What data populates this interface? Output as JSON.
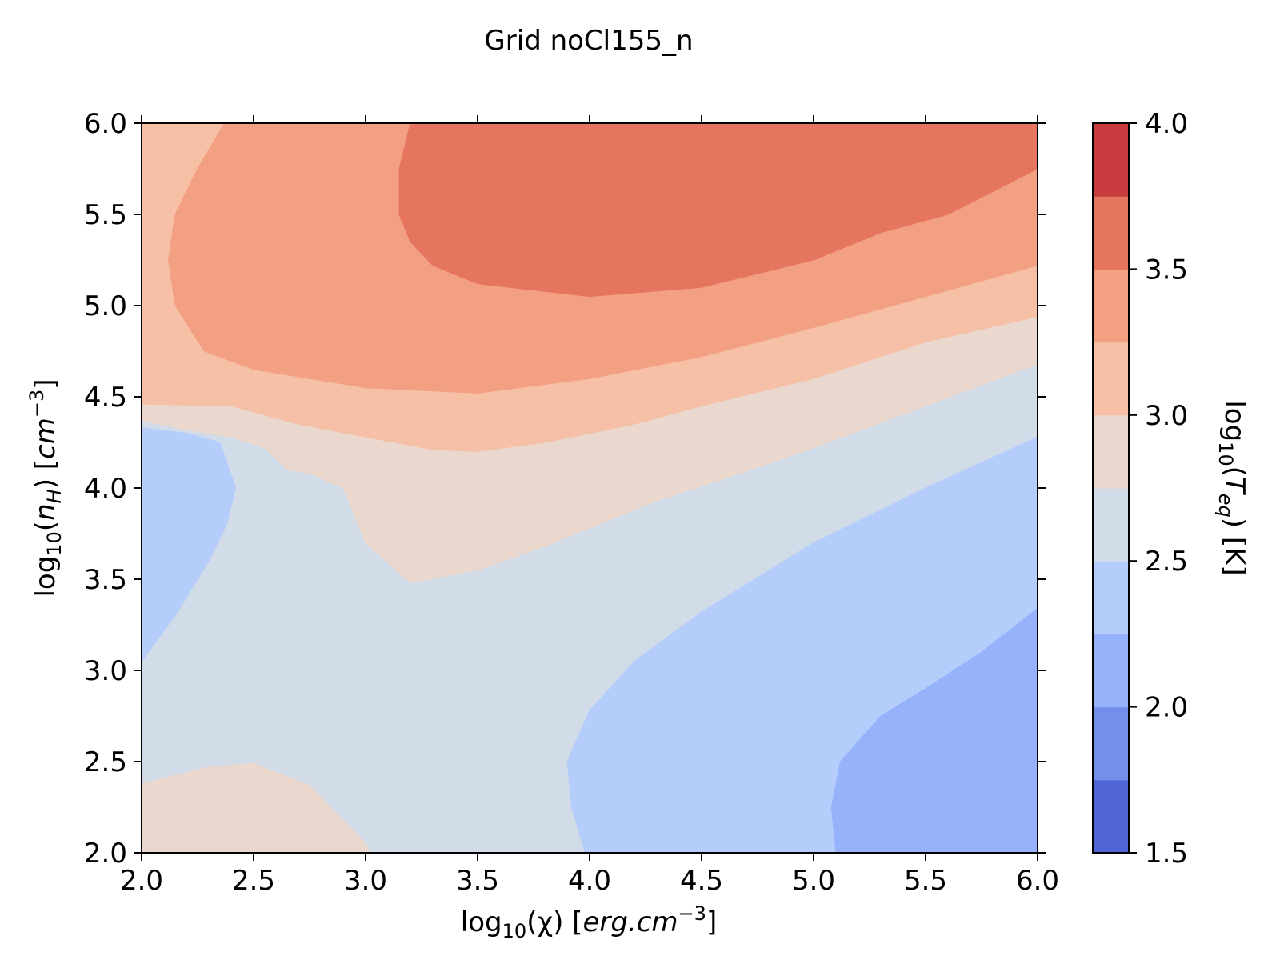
{
  "chart_data": {
    "type": "contourf",
    "title": "Grid noCl155_n",
    "xlabel": {
      "base": "log",
      "sub": "10",
      "mid": "(χ) [",
      "ital": "erg.cm",
      "sup": "−3",
      "end": "]"
    },
    "ylabel": {
      "base": "log",
      "sub": "10",
      "open": "(",
      "ital1": "n",
      "isub": "H",
      "mid": ") [",
      "ital2": "cm",
      "sup": "−3",
      "end": "]"
    },
    "colorbar_label": {
      "base": "log",
      "sub": "10",
      "open": "(",
      "ital": "T",
      "isub": "eq",
      "end": ") [K]"
    },
    "xlim": [
      2.0,
      6.0
    ],
    "ylim": [
      2.0,
      6.0
    ],
    "x_ticks": [
      "2.0",
      "2.5",
      "3.0",
      "3.5",
      "4.0",
      "4.5",
      "5.0",
      "5.5",
      "6.0"
    ],
    "y_ticks": [
      "2.0",
      "2.5",
      "3.0",
      "3.5",
      "4.0",
      "4.5",
      "5.0",
      "5.5",
      "6.0"
    ],
    "colorbar": {
      "range": [
        1.5,
        4.0
      ],
      "ticks": [
        "1.5",
        "2.0",
        "2.5",
        "3.0",
        "3.5",
        "4.0"
      ],
      "levels": [
        {
          "from": 1.5,
          "to": 1.75,
          "color": "#5166d6"
        },
        {
          "from": 1.75,
          "to": 2.0,
          "color": "#7290ea"
        },
        {
          "from": 2.0,
          "to": 2.25,
          "color": "#95b2fb"
        },
        {
          "from": 2.25,
          "to": 2.5,
          "color": "#b5cdfa"
        },
        {
          "from": 2.5,
          "to": 2.75,
          "color": "#d2dbe8"
        },
        {
          "from": 2.75,
          "to": 3.0,
          "color": "#ead8cf"
        },
        {
          "from": 3.0,
          "to": 3.25,
          "color": "#f5c0a6"
        },
        {
          "from": 3.25,
          "to": 3.5,
          "color": "#f39f82"
        },
        {
          "from": 3.5,
          "to": 3.75,
          "color": "#e6755f"
        },
        {
          "from": 3.75,
          "to": 4.0,
          "color": "#c83b3e"
        }
      ]
    },
    "regions": [
      {
        "level": 2.625,
        "points": [
          [
            2.0,
            2.0
          ],
          [
            6.0,
            2.0
          ],
          [
            6.0,
            6.0
          ],
          [
            2.0,
            6.0
          ]
        ]
      },
      {
        "level": 2.875,
        "points": [
          [
            2.0,
            4.37
          ],
          [
            2.2,
            4.32
          ],
          [
            2.4,
            4.28
          ],
          [
            2.55,
            4.22
          ],
          [
            2.65,
            4.1
          ],
          [
            2.75,
            4.08
          ],
          [
            2.9,
            4.0
          ],
          [
            3.0,
            3.7
          ],
          [
            3.2,
            3.48
          ],
          [
            3.5,
            3.55
          ],
          [
            3.8,
            3.68
          ],
          [
            4.3,
            3.93
          ],
          [
            4.6,
            4.05
          ],
          [
            5.0,
            4.22
          ],
          [
            5.5,
            4.45
          ],
          [
            6.0,
            4.68
          ],
          [
            6.0,
            6.0
          ],
          [
            2.0,
            6.0
          ]
        ]
      },
      {
        "level": 3.125,
        "points": [
          [
            2.0,
            4.46
          ],
          [
            2.4,
            4.45
          ],
          [
            2.7,
            4.35
          ],
          [
            3.0,
            4.28
          ],
          [
            3.3,
            4.21
          ],
          [
            3.5,
            4.2
          ],
          [
            3.8,
            4.25
          ],
          [
            4.2,
            4.35
          ],
          [
            4.5,
            4.45
          ],
          [
            5.0,
            4.6
          ],
          [
            5.5,
            4.8
          ],
          [
            6.0,
            4.94
          ],
          [
            6.0,
            6.0
          ],
          [
            2.0,
            6.0
          ]
        ]
      },
      {
        "level": 3.375,
        "points": [
          [
            2.37,
            6.0
          ],
          [
            2.25,
            5.75
          ],
          [
            2.15,
            5.5
          ],
          [
            2.12,
            5.25
          ],
          [
            2.15,
            5.0
          ],
          [
            2.28,
            4.75
          ],
          [
            2.5,
            4.65
          ],
          [
            3.0,
            4.55
          ],
          [
            3.5,
            4.52
          ],
          [
            4.0,
            4.6
          ],
          [
            4.5,
            4.72
          ],
          [
            5.0,
            4.88
          ],
          [
            5.5,
            5.05
          ],
          [
            6.0,
            5.22
          ],
          [
            6.0,
            6.0
          ]
        ]
      },
      {
        "level": 3.625,
        "points": [
          [
            3.2,
            6.0
          ],
          [
            3.15,
            5.75
          ],
          [
            3.15,
            5.5
          ],
          [
            3.2,
            5.35
          ],
          [
            3.3,
            5.22
          ],
          [
            3.5,
            5.12
          ],
          [
            4.0,
            5.05
          ],
          [
            4.5,
            5.1
          ],
          [
            5.0,
            5.25
          ],
          [
            5.3,
            5.4
          ],
          [
            5.6,
            5.5
          ],
          [
            6.0,
            5.75
          ],
          [
            6.0,
            6.0
          ]
        ]
      },
      {
        "level": 2.375,
        "points": [
          [
            2.0,
            3.05
          ],
          [
            2.15,
            3.3
          ],
          [
            2.3,
            3.6
          ],
          [
            2.38,
            3.8
          ],
          [
            2.42,
            4.0
          ],
          [
            2.35,
            4.25
          ],
          [
            2.2,
            4.3
          ],
          [
            2.0,
            4.33
          ]
        ]
      },
      {
        "level": 2.375,
        "points": [
          [
            3.98,
            2.0
          ],
          [
            3.92,
            2.25
          ],
          [
            3.9,
            2.5
          ],
          [
            4.0,
            2.78
          ],
          [
            4.2,
            3.05
          ],
          [
            4.5,
            3.32
          ],
          [
            5.0,
            3.7
          ],
          [
            5.5,
            4.0
          ],
          [
            6.0,
            4.28
          ],
          [
            6.0,
            2.0
          ]
        ]
      },
      {
        "level": 2.125,
        "points": [
          [
            5.1,
            2.0
          ],
          [
            5.08,
            2.25
          ],
          [
            5.12,
            2.5
          ],
          [
            5.3,
            2.75
          ],
          [
            5.5,
            2.9
          ],
          [
            5.75,
            3.1
          ],
          [
            6.0,
            3.34
          ],
          [
            6.0,
            2.0
          ]
        ]
      },
      {
        "level": 2.875,
        "points": [
          [
            2.0,
            2.0
          ],
          [
            2.0,
            2.38
          ],
          [
            2.3,
            2.47
          ],
          [
            2.5,
            2.49
          ],
          [
            2.75,
            2.37
          ],
          [
            3.0,
            2.05
          ],
          [
            3.02,
            2.0
          ]
        ]
      }
    ]
  }
}
